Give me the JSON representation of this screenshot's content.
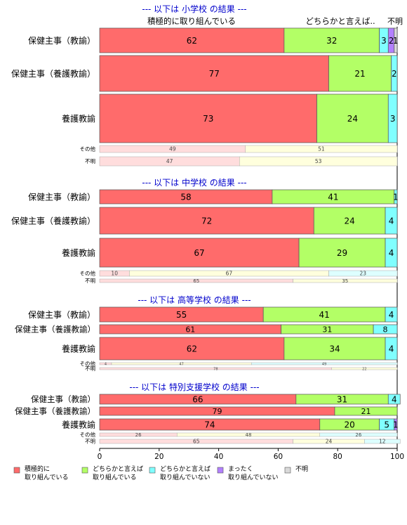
{
  "chart_data": {
    "type": "bar",
    "orientation": "horizontal",
    "stacked": true,
    "xlim": [
      0,
      100
    ],
    "x_ticks": [
      "0",
      "20",
      "40",
      "60",
      "80",
      "100"
    ],
    "category_labels": [
      "積極的に取り組んでいる",
      "どちらかと言えば..",
      "不明"
    ],
    "legend_position": "bottom",
    "legend": [
      {
        "line1": "積極的に",
        "line2": "取り組んでいる",
        "color": "#ff6b6b"
      },
      {
        "line1": "どちらかと言えば",
        "line2": "取り組んでいる",
        "color": "#b3ff66"
      },
      {
        "line1": "どちらかと言えば",
        "line2": "取り組んでいない",
        "color": "#80ffff"
      },
      {
        "line1": "まったく",
        "line2": "取り組んでいない",
        "color": "#b380ff"
      },
      {
        "line1": "不明",
        "line2": "",
        "color": "#d9d9d9"
      }
    ],
    "groups": [
      {
        "title": "--- 以下は 小学校 の結果 ---",
        "rows": [
          {
            "label": "保健主事（教諭）",
            "size": "big",
            "values": [
              62,
              32,
              3,
              2,
              1
            ]
          },
          {
            "label": "保健主事（養護教諭）",
            "size": "big",
            "values": [
              77,
              21,
              2,
              0,
              0
            ]
          },
          {
            "label": "養護教諭",
            "size": "big",
            "values": [
              73,
              24,
              3,
              0,
              0
            ]
          },
          {
            "label": "その他",
            "size": "small",
            "values": [
              49,
              51,
              0,
              0,
              0
            ]
          },
          {
            "label": "不明",
            "size": "small",
            "values": [
              47,
              53,
              0,
              0,
              0
            ]
          }
        ]
      },
      {
        "title": "--- 以下は 中学校 の結果 ---",
        "rows": [
          {
            "label": "保健主事（教諭）",
            "size": "big",
            "values": [
              58,
              41,
              1,
              0,
              0
            ]
          },
          {
            "label": "保健主事（養護教諭）",
            "size": "big",
            "values": [
              72,
              24,
              4,
              0,
              0
            ]
          },
          {
            "label": "養護教諭",
            "size": "big",
            "values": [
              67,
              29,
              4,
              0,
              0
            ]
          },
          {
            "label": "その他",
            "size": "small",
            "values": [
              10,
              67,
              23,
              0,
              0
            ]
          },
          {
            "label": "不明",
            "size": "small",
            "values": [
              65,
              35,
              0,
              0,
              0
            ]
          }
        ]
      },
      {
        "title": "--- 以下は 高等学校 の結果 ---",
        "rows": [
          {
            "label": "保健主事（教諭）",
            "size": "big",
            "values": [
              55,
              41,
              4,
              0,
              0
            ]
          },
          {
            "label": "保健主事（養護教諭）",
            "size": "big",
            "values": [
              61,
              31,
              8,
              0,
              0
            ]
          },
          {
            "label": "養護教諭",
            "size": "big",
            "values": [
              62,
              34,
              4,
              0,
              0
            ]
          },
          {
            "label": "その他",
            "size": "small",
            "values": [
              4,
              47,
              49,
              0,
              0
            ]
          },
          {
            "label": "不明",
            "size": "small",
            "values": [
              78,
              22,
              0,
              0,
              0
            ]
          }
        ]
      },
      {
        "title": "--- 以下は 特別支援学校 の結果 ---",
        "rows": [
          {
            "label": "保健主事（教諭）",
            "size": "big",
            "values": [
              66,
              31,
              4,
              0,
              0
            ]
          },
          {
            "label": "保健主事（養護教諭）",
            "size": "big",
            "values": [
              79,
              21,
              0,
              0,
              0
            ]
          },
          {
            "label": "養護教諭",
            "size": "big",
            "values": [
              74,
              20,
              5,
              1,
              0
            ]
          },
          {
            "label": "その他",
            "size": "small",
            "values": [
              26,
              48,
              26,
              0,
              0
            ]
          },
          {
            "label": "不明",
            "size": "small",
            "values": [
              65,
              24,
              12,
              0,
              0
            ]
          }
        ]
      }
    ]
  }
}
